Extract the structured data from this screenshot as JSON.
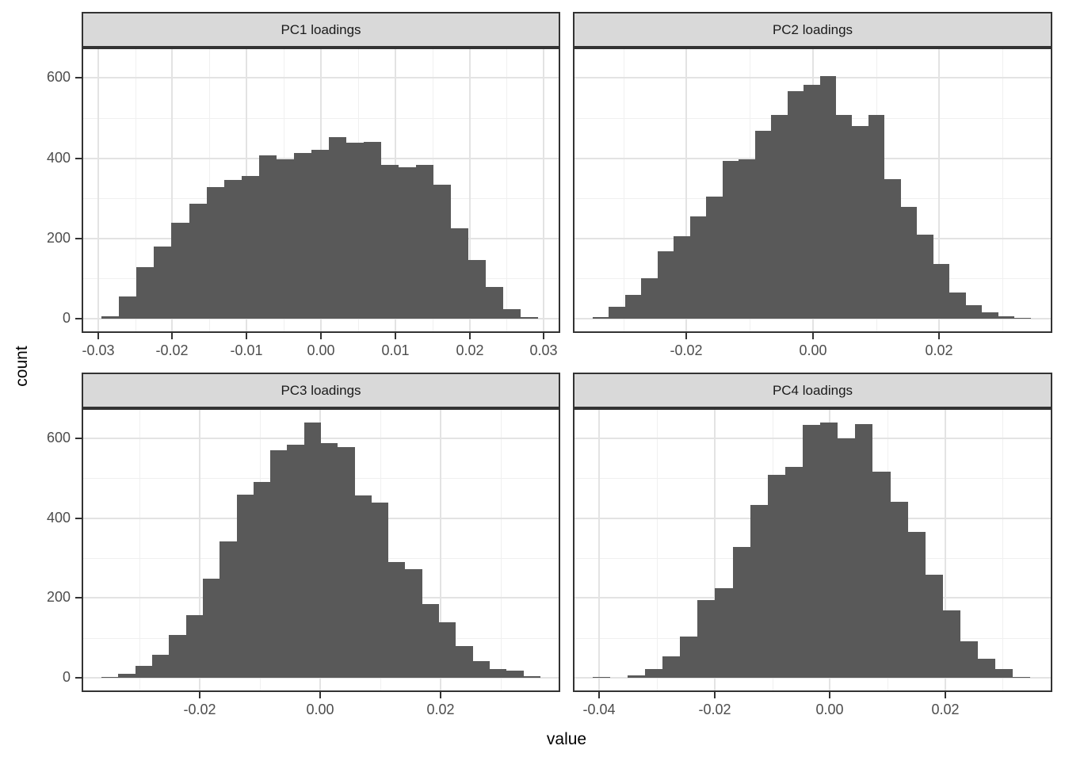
{
  "figure": {
    "kind": "faceted histogram figure (ggplot2 style, facet_wrap 2x2, free x scales)",
    "background": "#ffffff"
  },
  "style": {
    "bar_fill": "#595959",
    "panel_border": "#333333",
    "grid_major": "#e3e3e3",
    "grid_minor": "#f0f0f0",
    "strip_bg": "#d9d9d9",
    "strip_text": "#1a1a1a",
    "tick_text": "#4d4d4d",
    "axis_title_text": "#000000"
  },
  "axes": {
    "x_title": "value",
    "y_title": "count",
    "y_domain": [
      -36,
      676
    ],
    "y_ticks": {
      "values": [
        0,
        200,
        400,
        600
      ],
      "labels": [
        "0",
        "200",
        "400",
        "600"
      ]
    },
    "y_minor": [
      100,
      300,
      500
    ]
  },
  "chart_data": [
    {
      "type": "bar",
      "subtype": "histogram",
      "title": "PC1 loadings",
      "xlabel": "value",
      "ylabel": "count",
      "bin_start": -0.0295,
      "bin_width": 0.00235,
      "counts": [
        5,
        56,
        128,
        180,
        240,
        287,
        328,
        346,
        356,
        408,
        398,
        413,
        421,
        453,
        439,
        442,
        384,
        378,
        383,
        334,
        225,
        146,
        79,
        23,
        3
      ],
      "x_domain": [
        -0.0322,
        0.0322
      ],
      "x_ticks": {
        "values": [
          -0.03,
          -0.02,
          -0.01,
          0,
          0.01,
          0.02,
          0.03
        ],
        "labels": [
          "-0.03",
          "-0.02",
          "-0.01",
          "0.00",
          "0.01",
          "0.02",
          "0.03"
        ]
      },
      "x_minor": [
        -0.025,
        -0.015,
        -0.005,
        0.005,
        0.015,
        0.025
      ]
    },
    {
      "type": "bar",
      "subtype": "histogram",
      "title": "PC2 loadings",
      "xlabel": "value",
      "ylabel": "count",
      "bin_start": -0.0349,
      "bin_width": 0.00257,
      "counts": [
        3,
        30,
        59,
        101,
        169,
        206,
        256,
        305,
        393,
        397,
        468,
        509,
        567,
        583,
        605,
        508,
        481,
        509,
        349,
        278,
        209,
        137,
        66,
        33,
        15,
        5,
        2
      ],
      "x_domain": [
        -0.038,
        0.0379
      ],
      "x_ticks": {
        "values": [
          -0.02,
          0,
          0.02
        ],
        "labels": [
          "-0.02",
          "0.00",
          "0.02"
        ]
      },
      "x_minor": [
        -0.03,
        -0.01,
        0.01,
        0.03
      ]
    },
    {
      "type": "bar",
      "subtype": "histogram",
      "title": "PC3 loadings",
      "xlabel": "value",
      "ylabel": "count",
      "bin_start": -0.0363,
      "bin_width": 0.0028,
      "counts": [
        1,
        10,
        30,
        57,
        107,
        157,
        249,
        343,
        459,
        492,
        570,
        585,
        640,
        588,
        579,
        457,
        440,
        290,
        272,
        185,
        140,
        79,
        42,
        22,
        18,
        3
      ],
      "x_domain": [
        -0.0396,
        0.0398
      ],
      "x_ticks": {
        "values": [
          -0.02,
          0,
          0.02
        ],
        "labels": [
          "-0.02",
          "0.00",
          "0.02"
        ]
      },
      "x_minor": [
        -0.03,
        -0.01,
        0.01,
        0.03
      ]
    },
    {
      "type": "bar",
      "subtype": "histogram",
      "title": "PC4 loadings",
      "xlabel": "value",
      "ylabel": "count",
      "bin_start": -0.0412,
      "bin_width": 0.00304,
      "counts": [
        1,
        0,
        5,
        22,
        54,
        104,
        194,
        225,
        328,
        433,
        510,
        529,
        634,
        641,
        601,
        637,
        517,
        442,
        366,
        258,
        170,
        92,
        47,
        21,
        2
      ],
      "x_domain": [
        -0.0446,
        0.0386
      ],
      "x_ticks": {
        "values": [
          -0.04,
          -0.02,
          0,
          0.02
        ],
        "labels": [
          "-0.04",
          "-0.02",
          "0.00",
          "0.02"
        ]
      },
      "x_minor": [
        -0.03,
        -0.01,
        0.01,
        0.03
      ]
    }
  ]
}
